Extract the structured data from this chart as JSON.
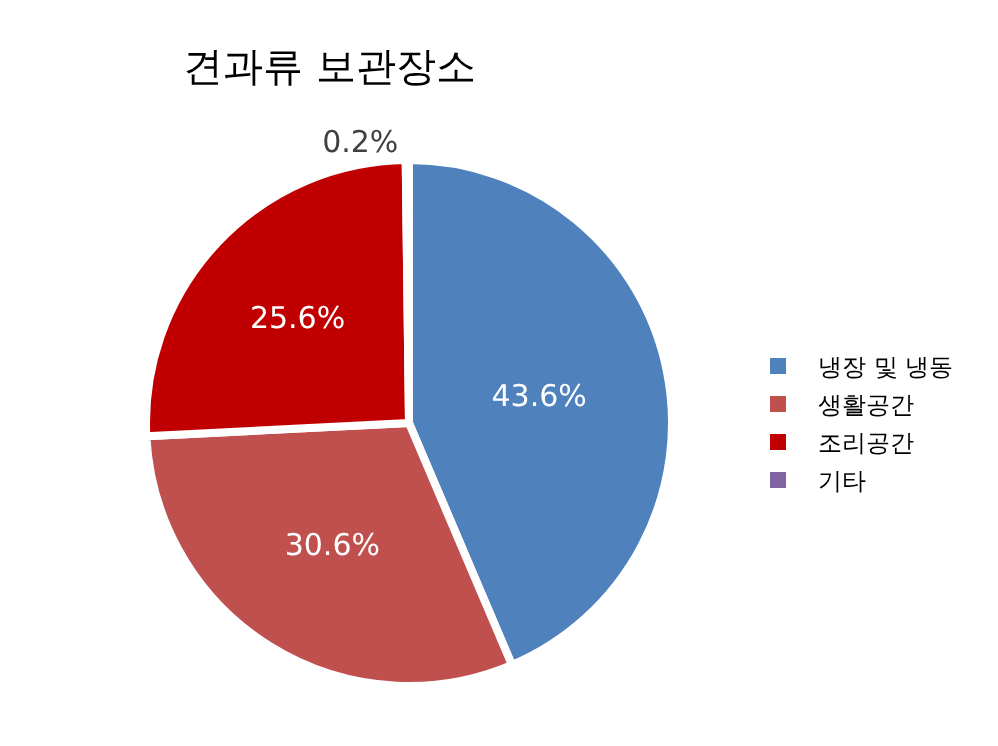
{
  "chart_data": {
    "type": "pie",
    "title": "견과류 보관장소",
    "categories": [
      "냉장 및 냉동",
      "생활공간",
      "조리공간",
      "기타"
    ],
    "values": [
      43.6,
      30.6,
      25.6,
      0.2
    ],
    "colors": [
      "#4f81bd",
      "#c0504d",
      "#c00000",
      "#8064a2"
    ],
    "value_labels": [
      "43.6%",
      "30.6%",
      "25.6%",
      "0.2%"
    ],
    "legend": "right"
  }
}
